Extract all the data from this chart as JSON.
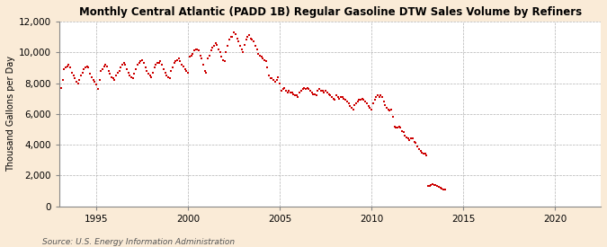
{
  "title": "Monthly Central Atlantic (PADD 1B) Regular Gasoline DTW Sales Volume by Refiners",
  "ylabel": "Thousand Gallons per Day",
  "source": "Source: U.S. Energy Information Administration",
  "figure_bg_color": "#faebd7",
  "plot_bg_color": "#ffffff",
  "dot_color": "#cc0000",
  "dot_size": 3,
  "xlim": [
    1993.0,
    2022.5
  ],
  "ylim": [
    0,
    12000
  ],
  "yticks": [
    0,
    2000,
    4000,
    6000,
    8000,
    10000,
    12000
  ],
  "xticks": [
    1995,
    2000,
    2005,
    2010,
    2015,
    2020
  ],
  "data": [
    [
      1993.08,
      7700
    ],
    [
      1993.17,
      8200
    ],
    [
      1993.25,
      8900
    ],
    [
      1993.33,
      9000
    ],
    [
      1993.42,
      9100
    ],
    [
      1993.5,
      9200
    ],
    [
      1993.58,
      9000
    ],
    [
      1993.67,
      8700
    ],
    [
      1993.75,
      8500
    ],
    [
      1993.83,
      8300
    ],
    [
      1993.92,
      8100
    ],
    [
      1994.0,
      8000
    ],
    [
      1994.08,
      8200
    ],
    [
      1994.17,
      8500
    ],
    [
      1994.25,
      8700
    ],
    [
      1994.33,
      8900
    ],
    [
      1994.42,
      9000
    ],
    [
      1994.5,
      9100
    ],
    [
      1994.58,
      9000
    ],
    [
      1994.67,
      8600
    ],
    [
      1994.75,
      8400
    ],
    [
      1994.83,
      8200
    ],
    [
      1994.92,
      8100
    ],
    [
      1995.0,
      7900
    ],
    [
      1995.08,
      7600
    ],
    [
      1995.17,
      8200
    ],
    [
      1995.25,
      8800
    ],
    [
      1995.33,
      8900
    ],
    [
      1995.42,
      9100
    ],
    [
      1995.5,
      9200
    ],
    [
      1995.58,
      9100
    ],
    [
      1995.67,
      8800
    ],
    [
      1995.75,
      8600
    ],
    [
      1995.83,
      8400
    ],
    [
      1995.92,
      8300
    ],
    [
      1996.0,
      8200
    ],
    [
      1996.08,
      8500
    ],
    [
      1996.17,
      8700
    ],
    [
      1996.25,
      8800
    ],
    [
      1996.33,
      9000
    ],
    [
      1996.42,
      9200
    ],
    [
      1996.5,
      9300
    ],
    [
      1996.58,
      9200
    ],
    [
      1996.67,
      8900
    ],
    [
      1996.75,
      8700
    ],
    [
      1996.83,
      8500
    ],
    [
      1996.92,
      8400
    ],
    [
      1997.0,
      8300
    ],
    [
      1997.08,
      8600
    ],
    [
      1997.17,
      8900
    ],
    [
      1997.25,
      9200
    ],
    [
      1997.33,
      9300
    ],
    [
      1997.42,
      9400
    ],
    [
      1997.5,
      9500
    ],
    [
      1997.58,
      9300
    ],
    [
      1997.67,
      9000
    ],
    [
      1997.75,
      8800
    ],
    [
      1997.83,
      8600
    ],
    [
      1997.92,
      8500
    ],
    [
      1998.0,
      8400
    ],
    [
      1998.08,
      8700
    ],
    [
      1998.17,
      9000
    ],
    [
      1998.25,
      9200
    ],
    [
      1998.33,
      9300
    ],
    [
      1998.42,
      9300
    ],
    [
      1998.5,
      9400
    ],
    [
      1998.58,
      9200
    ],
    [
      1998.67,
      8900
    ],
    [
      1998.75,
      8700
    ],
    [
      1998.83,
      8500
    ],
    [
      1998.92,
      8400
    ],
    [
      1999.0,
      8300
    ],
    [
      1999.08,
      8800
    ],
    [
      1999.17,
      9000
    ],
    [
      1999.25,
      9300
    ],
    [
      1999.33,
      9400
    ],
    [
      1999.42,
      9500
    ],
    [
      1999.5,
      9600
    ],
    [
      1999.58,
      9400
    ],
    [
      1999.67,
      9200
    ],
    [
      1999.75,
      9100
    ],
    [
      1999.83,
      8900
    ],
    [
      1999.92,
      8800
    ],
    [
      2000.0,
      8700
    ],
    [
      2000.08,
      9700
    ],
    [
      2000.17,
      9800
    ],
    [
      2000.25,
      9900
    ],
    [
      2000.33,
      10100
    ],
    [
      2000.42,
      10200
    ],
    [
      2000.5,
      10200
    ],
    [
      2000.58,
      10100
    ],
    [
      2000.67,
      9800
    ],
    [
      2000.75,
      9600
    ],
    [
      2000.83,
      9200
    ],
    [
      2000.92,
      8800
    ],
    [
      2001.0,
      8700
    ],
    [
      2001.08,
      9600
    ],
    [
      2001.17,
      9800
    ],
    [
      2001.25,
      10100
    ],
    [
      2001.33,
      10300
    ],
    [
      2001.42,
      10400
    ],
    [
      2001.5,
      10600
    ],
    [
      2001.58,
      10500
    ],
    [
      2001.67,
      10200
    ],
    [
      2001.75,
      10000
    ],
    [
      2001.83,
      9700
    ],
    [
      2001.92,
      9500
    ],
    [
      2002.0,
      9400
    ],
    [
      2002.08,
      10000
    ],
    [
      2002.17,
      10400
    ],
    [
      2002.25,
      10800
    ],
    [
      2002.33,
      11000
    ],
    [
      2002.42,
      11000
    ],
    [
      2002.5,
      11300
    ],
    [
      2002.58,
      11200
    ],
    [
      2002.67,
      10900
    ],
    [
      2002.75,
      10700
    ],
    [
      2002.83,
      10400
    ],
    [
      2002.92,
      10200
    ],
    [
      2003.0,
      10000
    ],
    [
      2003.08,
      10500
    ],
    [
      2003.17,
      10800
    ],
    [
      2003.25,
      11000
    ],
    [
      2003.33,
      11100
    ],
    [
      2003.42,
      10900
    ],
    [
      2003.5,
      10800
    ],
    [
      2003.58,
      10700
    ],
    [
      2003.67,
      10400
    ],
    [
      2003.75,
      10200
    ],
    [
      2003.83,
      9900
    ],
    [
      2003.92,
      9800
    ],
    [
      2004.0,
      9700
    ],
    [
      2004.08,
      9600
    ],
    [
      2004.17,
      9500
    ],
    [
      2004.25,
      9400
    ],
    [
      2004.33,
      9000
    ],
    [
      2004.42,
      8500
    ],
    [
      2004.5,
      8300
    ],
    [
      2004.58,
      8300
    ],
    [
      2004.67,
      8200
    ],
    [
      2004.75,
      8100
    ],
    [
      2004.83,
      8200
    ],
    [
      2004.92,
      8400
    ],
    [
      2005.0,
      8000
    ],
    [
      2005.08,
      7500
    ],
    [
      2005.17,
      7600
    ],
    [
      2005.25,
      7700
    ],
    [
      2005.33,
      7500
    ],
    [
      2005.42,
      7400
    ],
    [
      2005.5,
      7500
    ],
    [
      2005.58,
      7400
    ],
    [
      2005.67,
      7400
    ],
    [
      2005.75,
      7300
    ],
    [
      2005.83,
      7200
    ],
    [
      2005.92,
      7200
    ],
    [
      2006.0,
      7100
    ],
    [
      2006.08,
      7400
    ],
    [
      2006.17,
      7500
    ],
    [
      2006.25,
      7600
    ],
    [
      2006.33,
      7700
    ],
    [
      2006.42,
      7600
    ],
    [
      2006.5,
      7700
    ],
    [
      2006.58,
      7600
    ],
    [
      2006.67,
      7500
    ],
    [
      2006.75,
      7400
    ],
    [
      2006.83,
      7300
    ],
    [
      2006.92,
      7300
    ],
    [
      2007.0,
      7200
    ],
    [
      2007.08,
      7500
    ],
    [
      2007.17,
      7600
    ],
    [
      2007.25,
      7500
    ],
    [
      2007.33,
      7500
    ],
    [
      2007.42,
      7400
    ],
    [
      2007.5,
      7500
    ],
    [
      2007.58,
      7400
    ],
    [
      2007.67,
      7300
    ],
    [
      2007.75,
      7200
    ],
    [
      2007.83,
      7100
    ],
    [
      2007.92,
      7000
    ],
    [
      2008.0,
      6900
    ],
    [
      2008.08,
      7200
    ],
    [
      2008.17,
      7100
    ],
    [
      2008.25,
      7000
    ],
    [
      2008.33,
      7100
    ],
    [
      2008.42,
      7100
    ],
    [
      2008.5,
      7000
    ],
    [
      2008.58,
      6900
    ],
    [
      2008.67,
      6800
    ],
    [
      2008.75,
      6700
    ],
    [
      2008.83,
      6500
    ],
    [
      2008.92,
      6400
    ],
    [
      2009.0,
      6300
    ],
    [
      2009.08,
      6600
    ],
    [
      2009.17,
      6700
    ],
    [
      2009.25,
      6800
    ],
    [
      2009.33,
      6900
    ],
    [
      2009.42,
      6900
    ],
    [
      2009.5,
      7000
    ],
    [
      2009.58,
      6900
    ],
    [
      2009.67,
      6800
    ],
    [
      2009.75,
      6700
    ],
    [
      2009.83,
      6500
    ],
    [
      2009.92,
      6400
    ],
    [
      2010.0,
      6300
    ],
    [
      2010.08,
      6700
    ],
    [
      2010.17,
      6900
    ],
    [
      2010.25,
      7100
    ],
    [
      2010.33,
      7200
    ],
    [
      2010.42,
      7100
    ],
    [
      2010.5,
      7200
    ],
    [
      2010.58,
      7100
    ],
    [
      2010.67,
      6800
    ],
    [
      2010.75,
      6600
    ],
    [
      2010.83,
      6400
    ],
    [
      2010.92,
      6300
    ],
    [
      2011.0,
      6200
    ],
    [
      2011.08,
      6300
    ],
    [
      2011.17,
      5800
    ],
    [
      2011.25,
      5200
    ],
    [
      2011.33,
      5100
    ],
    [
      2011.42,
      5100
    ],
    [
      2011.5,
      5200
    ],
    [
      2011.58,
      5100
    ],
    [
      2011.67,
      4900
    ],
    [
      2011.75,
      4800
    ],
    [
      2011.83,
      4600
    ],
    [
      2011.92,
      4500
    ],
    [
      2012.0,
      4400
    ],
    [
      2012.08,
      4300
    ],
    [
      2012.17,
      4400
    ],
    [
      2012.25,
      4400
    ],
    [
      2012.33,
      4200
    ],
    [
      2012.42,
      4100
    ],
    [
      2012.5,
      3900
    ],
    [
      2012.58,
      3700
    ],
    [
      2012.67,
      3600
    ],
    [
      2012.75,
      3500
    ],
    [
      2012.83,
      3400
    ],
    [
      2012.92,
      3400
    ],
    [
      2013.0,
      3300
    ],
    [
      2013.08,
      1300
    ],
    [
      2013.17,
      1350
    ],
    [
      2013.25,
      1400
    ],
    [
      2013.33,
      1420
    ],
    [
      2013.42,
      1400
    ],
    [
      2013.5,
      1380
    ],
    [
      2013.58,
      1300
    ],
    [
      2013.67,
      1250
    ],
    [
      2013.75,
      1200
    ],
    [
      2013.83,
      1150
    ],
    [
      2013.92,
      1100
    ],
    [
      2014.0,
      1080
    ]
  ]
}
